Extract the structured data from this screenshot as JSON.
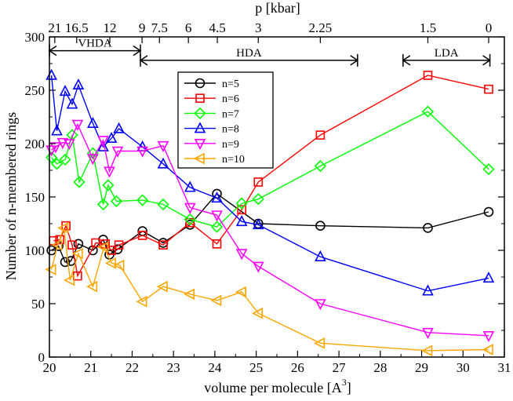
{
  "chart_data": {
    "type": "line",
    "title": "",
    "xlabel_main": "volume per molecule [A",
    "xlabel_sup": "3",
    "xlabel_close": "]",
    "ylabel": "Number of n-membered rings",
    "top_axis_label": "p [kbar]",
    "xlim": [
      20,
      31
    ],
    "ylim": [
      0,
      300
    ],
    "x_ticks": [
      20,
      21,
      22,
      23,
      24,
      25,
      26,
      27,
      28,
      29,
      30,
      31
    ],
    "y_ticks": [
      0,
      50,
      100,
      150,
      200,
      250,
      300
    ],
    "top_ticks": [
      {
        "label": "21",
        "x": 20.13
      },
      {
        "label": "16.5",
        "x": 20.66
      },
      {
        "label": "12",
        "x": 21.46
      },
      {
        "label": "9",
        "x": 22.24
      },
      {
        "label": "7.5",
        "x": 22.66
      },
      {
        "label": "6",
        "x": 23.36
      },
      {
        "label": "4.5",
        "x": 24.06
      },
      {
        "label": "3",
        "x": 25.05
      },
      {
        "label": "2.25",
        "x": 26.55
      },
      {
        "label": "1.5",
        "x": 29.15
      },
      {
        "label": "0",
        "x": 30.62
      }
    ],
    "regions": [
      {
        "label": "VHDA",
        "x_start": 20.0,
        "x_end": 22.2,
        "y": 287
      },
      {
        "label": "HDA",
        "x_start": 22.2,
        "x_end": 27.45,
        "y": 278
      },
      {
        "label": "LDA",
        "x_start": 28.55,
        "x_end": 30.65,
        "y": 278
      }
    ],
    "series": [
      {
        "name": "n=5",
        "color": "#000000",
        "marker": "circle",
        "x": [
          20.05,
          20.22,
          20.38,
          20.52,
          20.7,
          21.05,
          21.3,
          21.45,
          21.65,
          22.25,
          22.75,
          23.4,
          24.05,
          25.05,
          26.55,
          29.15,
          30.62
        ],
        "y": [
          100,
          104,
          89,
          90,
          106,
          100,
          110,
          96,
          101,
          118,
          107,
          124,
          153,
          125,
          123,
          121,
          136
        ]
      },
      {
        "name": "n=6",
        "color": "#ff0000",
        "marker": "square",
        "x": [
          20.1,
          20.25,
          20.4,
          20.55,
          20.68,
          21.12,
          21.35,
          21.5,
          21.68,
          22.25,
          22.75,
          23.4,
          24.05,
          24.65,
          25.05,
          26.55,
          29.15,
          30.62
        ],
        "y": [
          109,
          110,
          123,
          105,
          76,
          107,
          106,
          100,
          105,
          114,
          105,
          126,
          106,
          138,
          164,
          208,
          264,
          251
        ]
      },
      {
        "name": "n=7",
        "color": "#00ff00",
        "marker": "diamond",
        "x": [
          20.05,
          20.18,
          20.38,
          20.55,
          20.72,
          21.05,
          21.3,
          21.42,
          21.62,
          22.25,
          22.75,
          23.4,
          24.05,
          24.65,
          25.05,
          26.55,
          29.15,
          30.62
        ],
        "y": [
          187,
          181,
          185,
          208,
          164,
          191,
          143,
          161,
          146,
          147,
          143,
          129,
          122,
          144,
          148,
          179,
          230,
          176
        ]
      },
      {
        "name": "n=8",
        "color": "#0000ff",
        "marker": "triangle-up",
        "x": [
          20.05,
          20.18,
          20.38,
          20.55,
          20.7,
          21.05,
          21.3,
          21.5,
          21.68,
          22.25,
          22.75,
          23.4,
          24.05,
          24.65,
          25.05,
          26.55,
          29.15,
          30.62
        ],
        "y": [
          264,
          212,
          249,
          237,
          255,
          219,
          197,
          205,
          214,
          197,
          181,
          159,
          149,
          127,
          124,
          94,
          62,
          74
        ]
      },
      {
        "name": "n=9",
        "color": "#ff00ff",
        "marker": "triangle-down",
        "x": [
          20.05,
          20.15,
          20.32,
          20.48,
          20.68,
          21.05,
          21.3,
          21.45,
          21.65,
          22.25,
          22.75,
          23.4,
          24.05,
          24.65,
          25.05,
          26.55,
          29.15,
          30.62
        ],
        "y": [
          194,
          197,
          201,
          200,
          218,
          186,
          203,
          174,
          193,
          193,
          198,
          140,
          133,
          97,
          85,
          50,
          23,
          20
        ]
      },
      {
        "name": "n=10",
        "color": "#ffa500",
        "marker": "triangle-left",
        "x": [
          20.05,
          20.2,
          20.35,
          20.5,
          20.7,
          21.05,
          21.32,
          21.5,
          21.7,
          22.25,
          22.75,
          23.4,
          24.05,
          24.65,
          25.05,
          26.55,
          29.15,
          30.62
        ],
        "y": [
          82,
          105,
          121,
          72,
          97,
          66,
          103,
          88,
          86,
          52,
          66,
          59,
          53,
          61,
          41,
          13,
          6,
          7
        ]
      }
    ]
  }
}
